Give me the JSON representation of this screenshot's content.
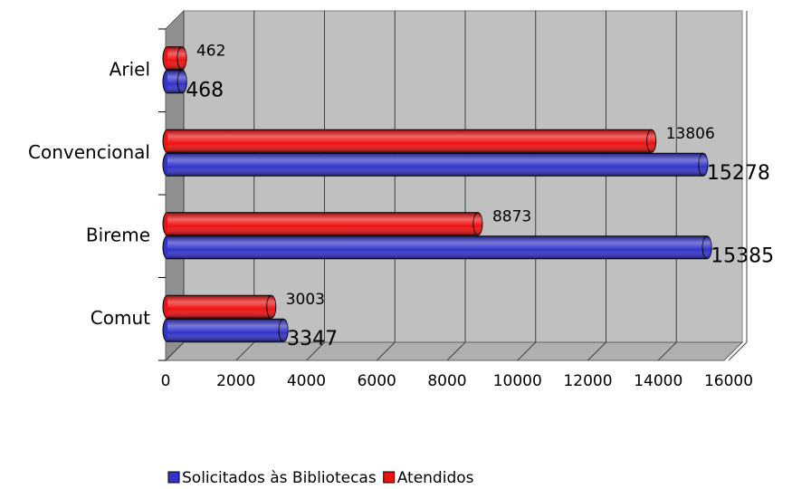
{
  "chart_data": {
    "type": "bar",
    "orientation": "horizontal",
    "categories": [
      "Ariel",
      "Convencional",
      "Bireme",
      "Comut"
    ],
    "series": [
      {
        "name": "Solicitados às Bibliotecas",
        "color": "#3333cc",
        "values": [
          468,
          15278,
          15385,
          3347
        ]
      },
      {
        "name": "Atendidos",
        "color": "#ee1111",
        "values": [
          462,
          13806,
          8873,
          3003
        ]
      }
    ],
    "xlim": [
      0,
      16000
    ],
    "xticks": [
      0,
      2000,
      4000,
      6000,
      8000,
      10000,
      12000,
      14000,
      16000
    ],
    "grid": true,
    "legend": "bottom"
  }
}
